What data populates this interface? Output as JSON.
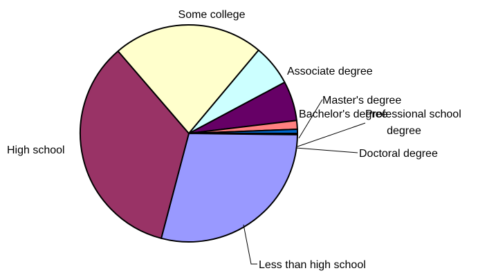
{
  "chart_data": {
    "type": "pie",
    "title": "",
    "start_angle_deg": -28.1,
    "direction": "clockwise",
    "slices": [
      {
        "label": "Bachelor's degree",
        "value": 5.9,
        "color": "#660066",
        "label_lines": [
          "Bachelor's degree"
        ]
      },
      {
        "label": "Professional school degree",
        "value": 1.3,
        "color": "#ff8080",
        "label_lines": [
          "Professional school",
          "degree"
        ]
      },
      {
        "label": "Master's degree",
        "value": 0.6,
        "color": "#0066cc",
        "label_lines": [
          "Master's degree"
        ]
      },
      {
        "label": "Doctoral degree",
        "value": 0.2,
        "color": "#ccccff",
        "label_lines": [
          "Doctoral degree"
        ]
      },
      {
        "label": "Less than high school",
        "value": 28.9,
        "color": "#9999ff",
        "label_lines": [
          "Less than high school"
        ]
      },
      {
        "label": "High school",
        "value": 34.6,
        "color": "#993366",
        "label_lines": [
          "High school"
        ]
      },
      {
        "label": "Some college",
        "value": 22.4,
        "color": "#ffffcc",
        "label_lines": [
          "Some college"
        ]
      },
      {
        "label": "Associate degree",
        "value": 6.1,
        "color": "#ccffff",
        "label_lines": [
          "Associate degree"
        ]
      }
    ]
  }
}
